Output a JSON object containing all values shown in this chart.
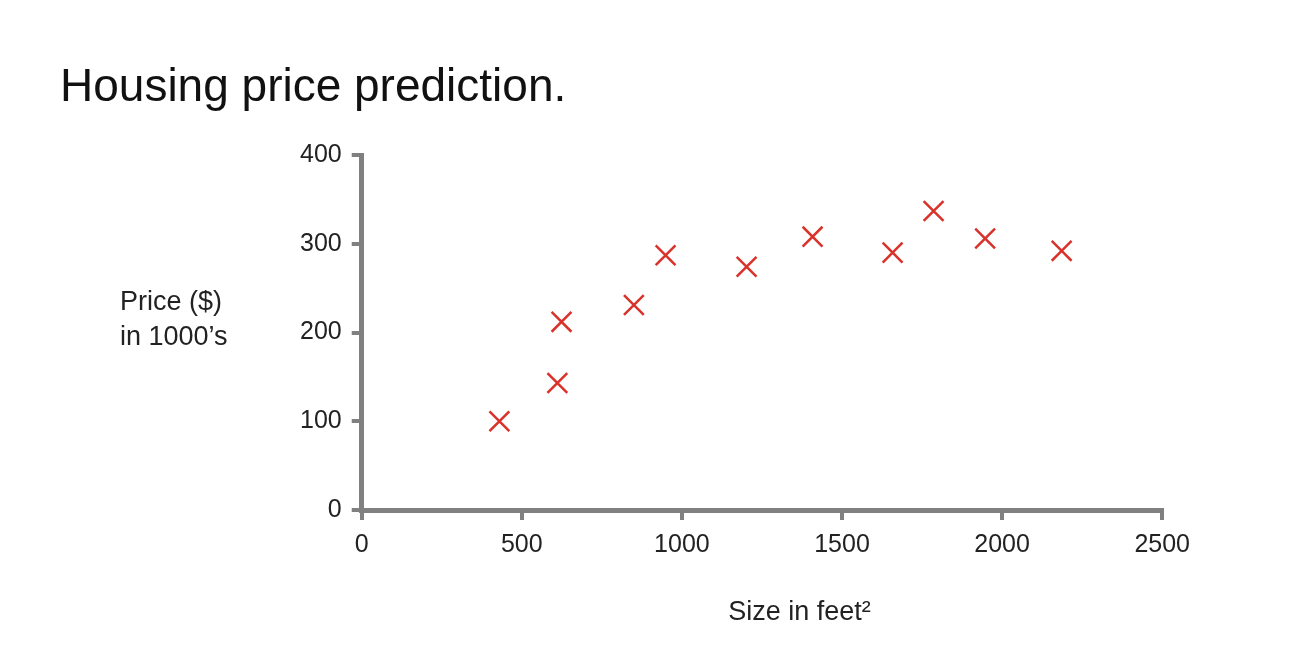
{
  "chart_data": {
    "type": "scatter",
    "title": "Housing price prediction.",
    "xlabel": "Size in feet²",
    "ylabel": "Price ($)\nin 1000’s",
    "x": [
      430,
      611,
      624,
      850,
      949,
      1202,
      1408,
      1658,
      1786,
      1947,
      2186
    ],
    "series": [
      {
        "color": "#d8322a",
        "values": [
          100,
          143,
          212,
          231,
          287,
          274,
          308,
          290,
          337,
          306,
          292
        ]
      }
    ],
    "marker": "cross",
    "xlim": [
      0,
      2500
    ],
    "xticks": [
      0,
      500,
      1000,
      1500,
      2000,
      2500
    ],
    "ylim": [
      0,
      400
    ],
    "yticks": [
      0,
      100,
      200,
      300,
      400
    ],
    "grid": false
  }
}
